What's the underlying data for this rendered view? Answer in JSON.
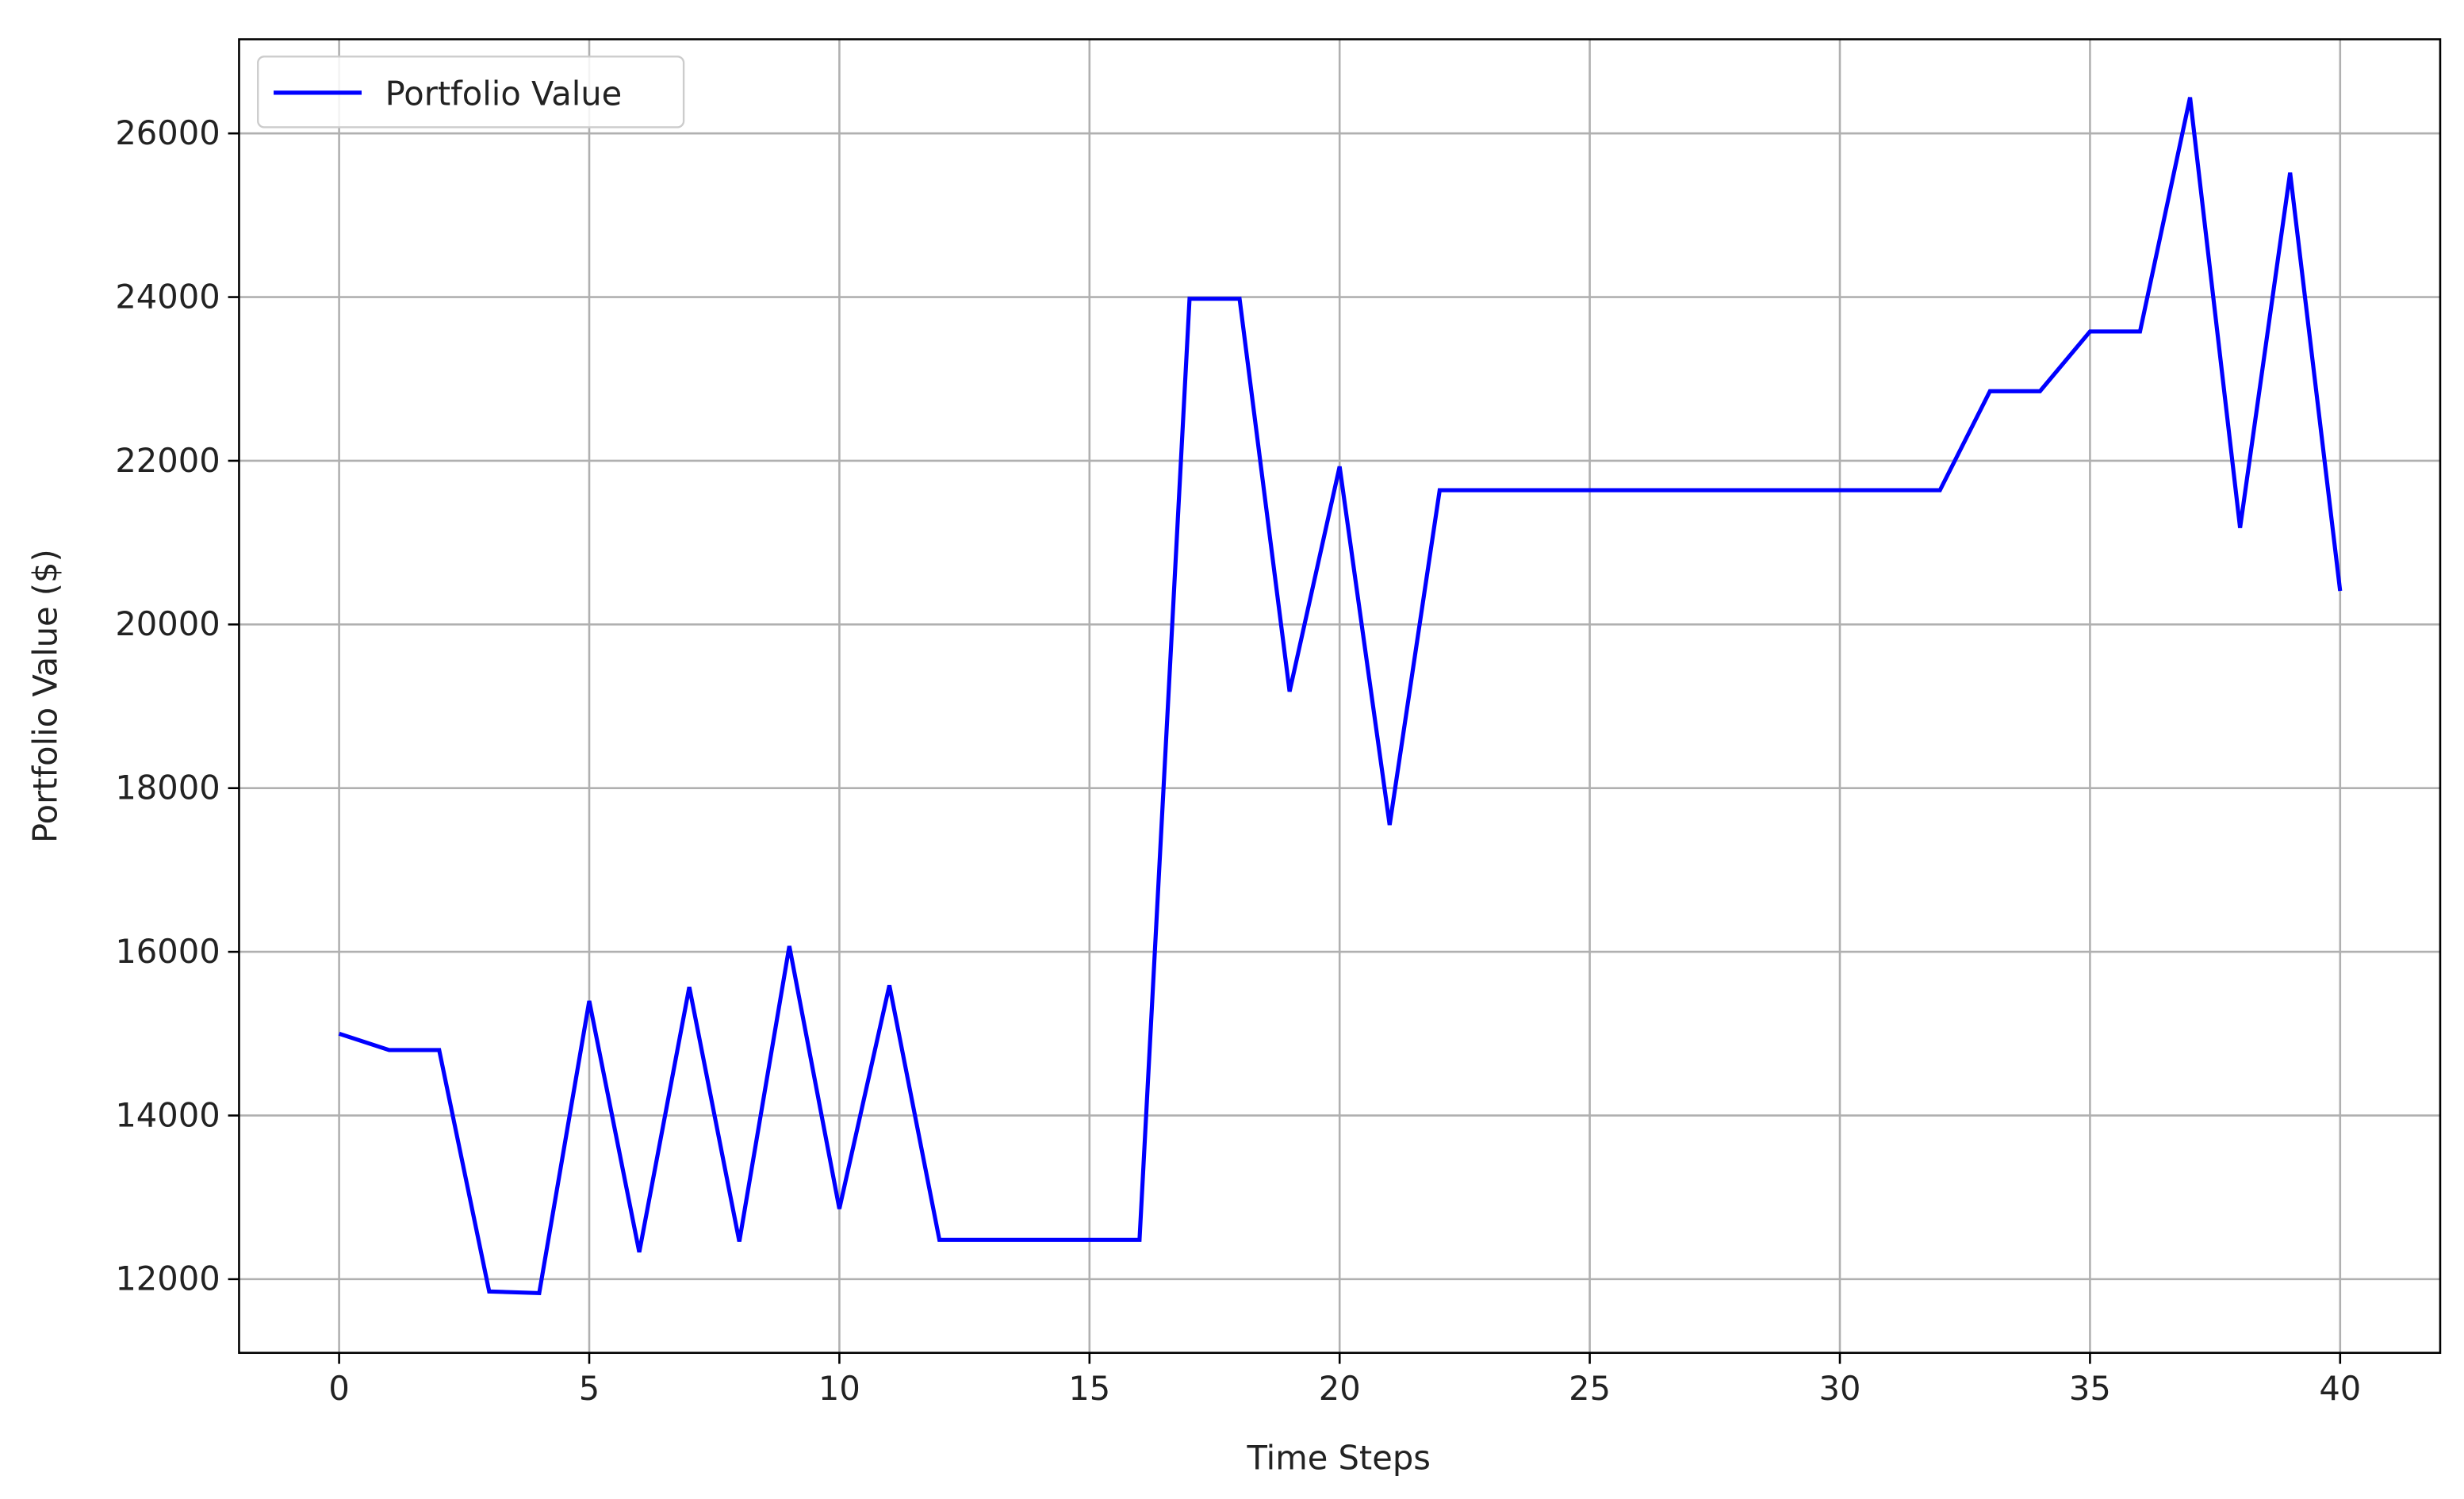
{
  "chart_data": {
    "type": "line",
    "x_label": "Time Steps",
    "y_label": "Portfolio Value ($)",
    "x": [
      0,
      1,
      2,
      3,
      4,
      5,
      6,
      7,
      8,
      9,
      10,
      11,
      12,
      13,
      14,
      15,
      16,
      17,
      18,
      19,
      20,
      21,
      22,
      23,
      24,
      25,
      26,
      27,
      28,
      29,
      30,
      31,
      32,
      33,
      34,
      35,
      36,
      37,
      38,
      39,
      40
    ],
    "series": [
      {
        "name": "Portfolio Value",
        "color": "#0000ff",
        "values": [
          15000,
          14800,
          14800,
          11850,
          11830,
          15400,
          12330,
          15570,
          12460,
          16070,
          12860,
          15590,
          12480,
          12480,
          12480,
          12480,
          12480,
          23980,
          23980,
          19180,
          21930,
          17550,
          21640,
          21640,
          21640,
          21640,
          21640,
          21640,
          21640,
          21640,
          21640,
          21640,
          21640,
          22850,
          22850,
          23580,
          23580,
          26440,
          21180,
          25520,
          20410
        ]
      }
    ],
    "xlim": [
      -2,
      42
    ],
    "xticks": [
      0,
      5,
      10,
      15,
      20,
      25,
      30,
      35,
      40
    ],
    "ylim": [
      11100,
      27150
    ],
    "yticks": [
      12000,
      14000,
      16000,
      18000,
      20000,
      22000,
      24000,
      26000
    ],
    "grid": true,
    "legend": "upper left"
  }
}
